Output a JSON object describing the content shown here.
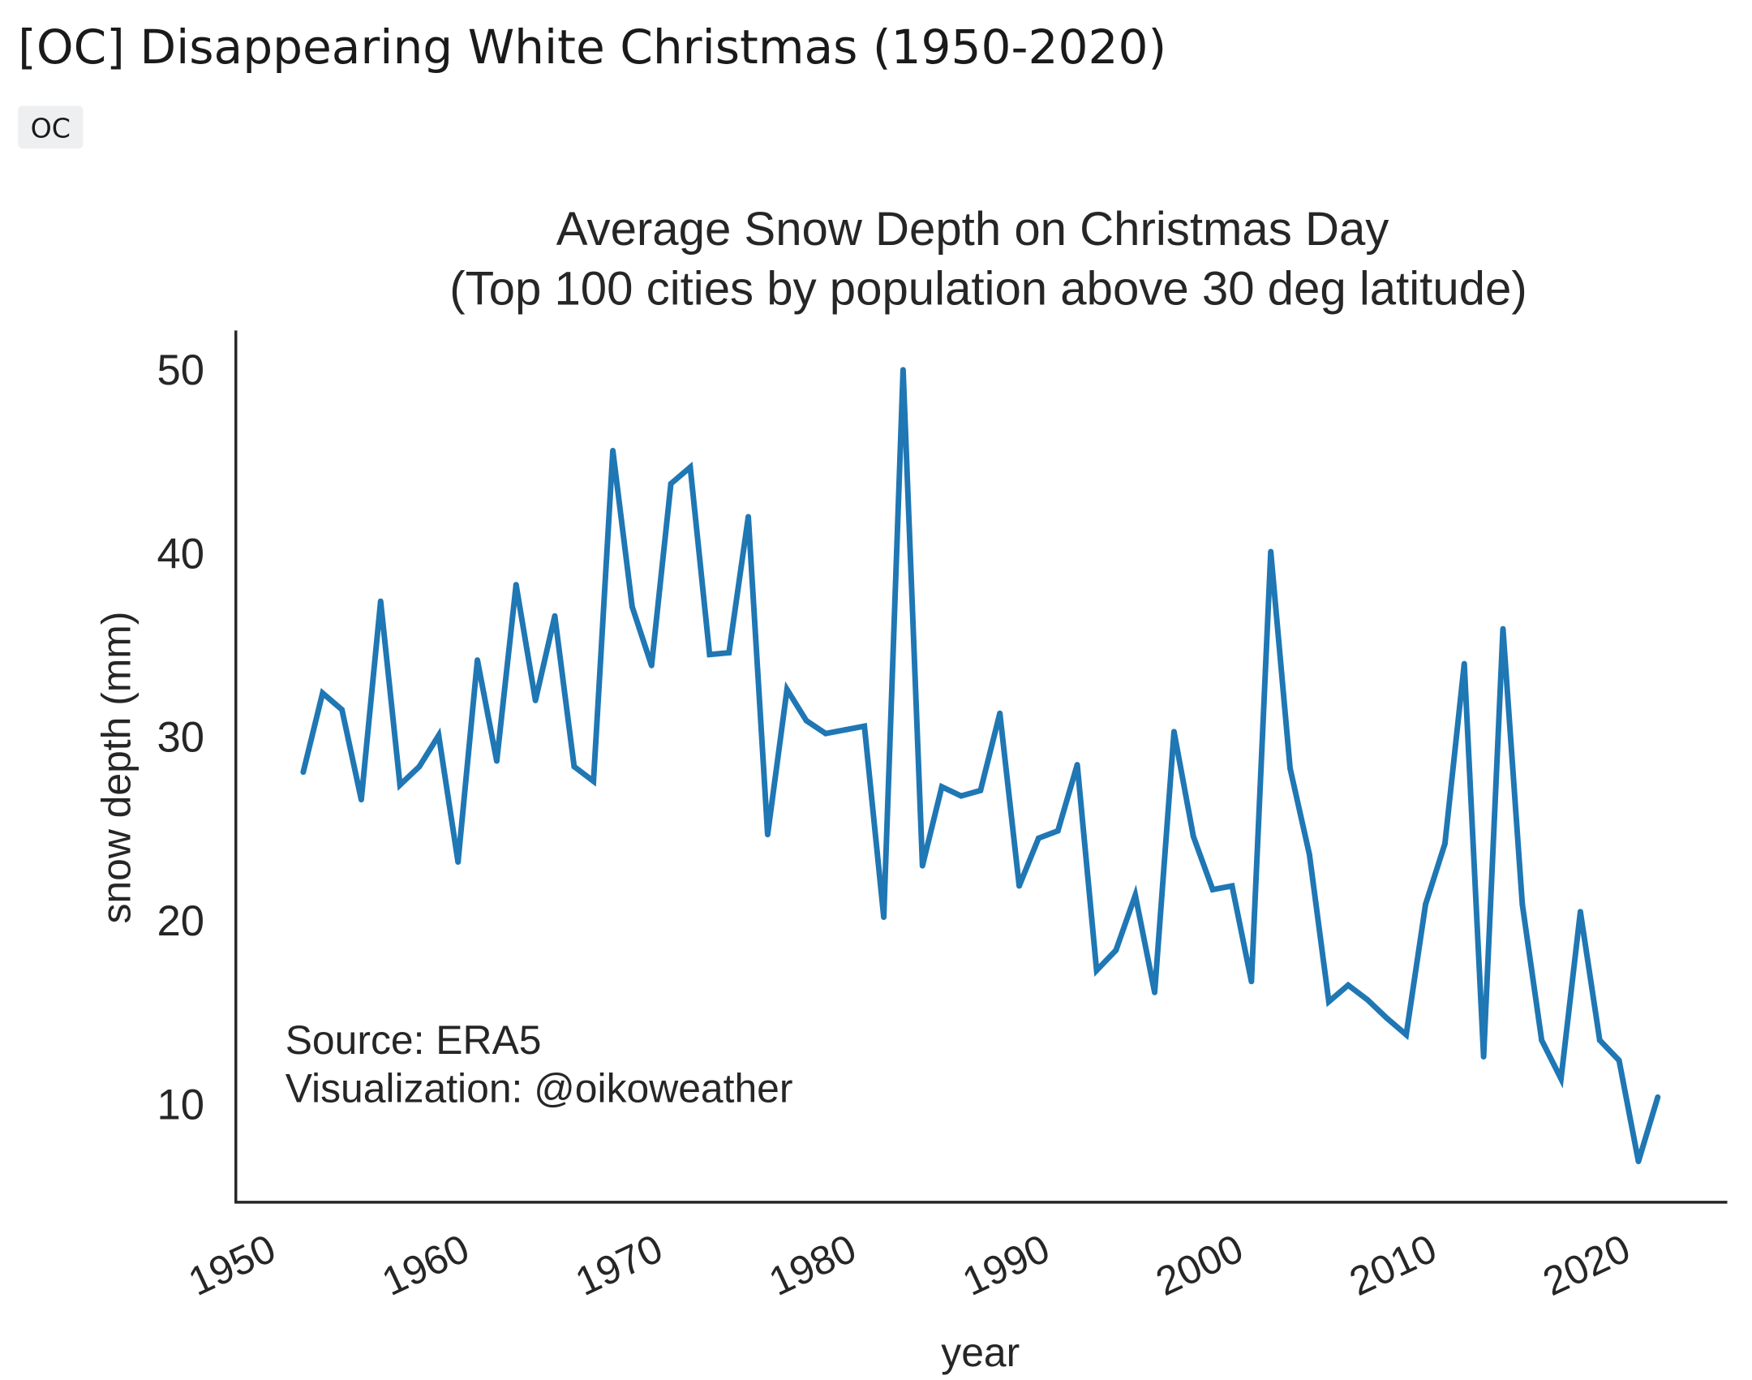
{
  "post": {
    "title": "[OC] Disappearing White Christmas (1950-2020)",
    "flair": "OC"
  },
  "chart_data": {
    "type": "line",
    "title": "Average Snow Depth on Christmas Day",
    "subtitle": "(Top 100 cities by population above 30 deg latitude)",
    "xlabel": "year",
    "ylabel": "snow depth (mm)",
    "x_ticks": [
      1950,
      1960,
      1970,
      1980,
      1990,
      2000,
      2010,
      2020
    ],
    "y_ticks": [
      10,
      20,
      30,
      40,
      50
    ],
    "grid": false,
    "line_color": "#1f77b4",
    "annotation": [
      "Source: ERA5",
      "Visualization: @oikoweather"
    ],
    "x": [
      1950,
      1951,
      1952,
      1953,
      1954,
      1955,
      1956,
      1957,
      1958,
      1959,
      1960,
      1961,
      1962,
      1963,
      1964,
      1965,
      1966,
      1967,
      1968,
      1969,
      1970,
      1971,
      1972,
      1973,
      1974,
      1975,
      1976,
      1977,
      1978,
      1979,
      1980,
      1981,
      1982,
      1983,
      1984,
      1985,
      1986,
      1987,
      1988,
      1989,
      1990,
      1991,
      1992,
      1993,
      1994,
      1995,
      1996,
      1997,
      1998,
      1999,
      2000,
      2001,
      2002,
      2003,
      2004,
      2005,
      2006,
      2007,
      2008,
      2009,
      2010,
      2011,
      2012,
      2013,
      2014,
      2015,
      2016,
      2017,
      2018,
      2019,
      2020
    ],
    "values": [
      28.1,
      32.4,
      31.5,
      26.6,
      37.4,
      27.4,
      28.4,
      30.1,
      23.2,
      34.2,
      28.7,
      38.3,
      32.0,
      36.6,
      28.4,
      27.6,
      45.6,
      37.1,
      33.9,
      43.8,
      44.7,
      34.5,
      34.6,
      42.0,
      24.7,
      32.6,
      30.9,
      30.2,
      30.4,
      30.6,
      20.2,
      50.0,
      23.0,
      27.3,
      26.8,
      27.1,
      31.3,
      21.9,
      24.5,
      24.9,
      28.5,
      17.3,
      18.4,
      21.4,
      16.1,
      30.3,
      24.6,
      21.7,
      21.9,
      16.7,
      40.1,
      28.3,
      23.6,
      15.6,
      16.5,
      15.7,
      14.7,
      13.8,
      20.9,
      24.2,
      34.0,
      12.6,
      35.9,
      20.9,
      13.5,
      11.4,
      20.5,
      13.5,
      12.4,
      6.9,
      10.4
    ]
  }
}
